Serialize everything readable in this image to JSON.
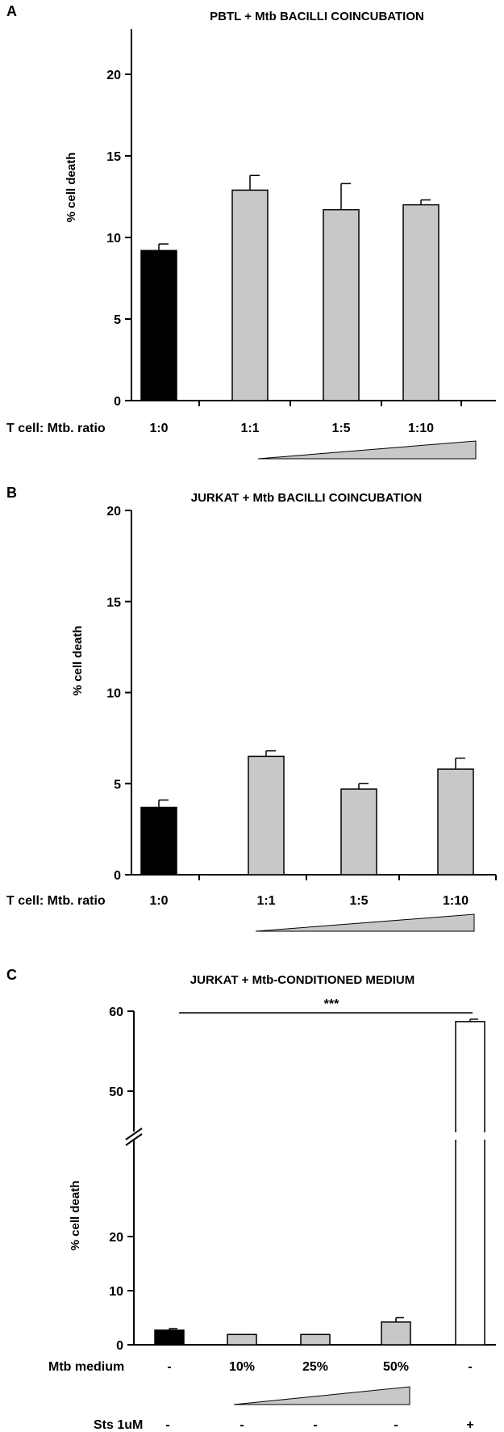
{
  "chart_data": [
    {
      "panel_letter": "A",
      "type": "bar",
      "title": "PBTL + Mtb BACILLI COINCUBATION",
      "ylabel": "% cell death",
      "xlabel": "T cell: Mtb. ratio",
      "ylim": [
        0,
        20
      ],
      "yticks": [
        0,
        5,
        10,
        15,
        20
      ],
      "categories": [
        "1:0",
        "1:1",
        "1:5",
        "1:10"
      ],
      "values": [
        9.2,
        12.9,
        11.7,
        12.0
      ],
      "errors": [
        0.4,
        0.9,
        1.6,
        0.3
      ],
      "bar_colors": [
        "#000000",
        "#c8c8c8",
        "#c8c8c8",
        "#c8c8c8"
      ],
      "has_gradient_wedge": true
    },
    {
      "panel_letter": "B",
      "type": "bar",
      "title": "JURKAT + Mtb BACILLI COINCUBATION",
      "ylabel": "% cell death",
      "xlabel": "T cell: Mtb. ratio",
      "ylim": [
        0,
        20
      ],
      "yticks": [
        0,
        5,
        10,
        15,
        20
      ],
      "categories": [
        "1:0",
        "1:1",
        "1:5",
        "1:10"
      ],
      "values": [
        3.7,
        6.5,
        4.7,
        5.8
      ],
      "errors": [
        0.4,
        0.3,
        0.3,
        0.6
      ],
      "bar_colors": [
        "#000000",
        "#c8c8c8",
        "#c8c8c8",
        "#c8c8c8"
      ],
      "has_gradient_wedge": true
    },
    {
      "panel_letter": "C",
      "type": "bar",
      "title": "JURKAT + Mtb-CONDITIONED MEDIUM",
      "ylabel": "% cell death",
      "ylim": [
        0,
        60
      ],
      "axis_break": [
        25,
        45
      ],
      "yticks": [
        0,
        10,
        20,
        50,
        60
      ],
      "row_labels": [
        "Mtb medium",
        "Sts 1uM"
      ],
      "mtb_medium": [
        "-",
        "10%",
        "25%",
        "50%",
        "-"
      ],
      "sts": [
        "-",
        "-",
        "-",
        "-",
        "+"
      ],
      "values": [
        2.7,
        1.9,
        1.9,
        4.2,
        58.7
      ],
      "errors": [
        0.3,
        0,
        0,
        0.8,
        0.3
      ],
      "bar_colors": [
        "#000000",
        "#c8c8c8",
        "#c8c8c8",
        "#c8c8c8",
        "#ffffff"
      ],
      "significance": "***",
      "has_gradient_wedge": true
    }
  ]
}
